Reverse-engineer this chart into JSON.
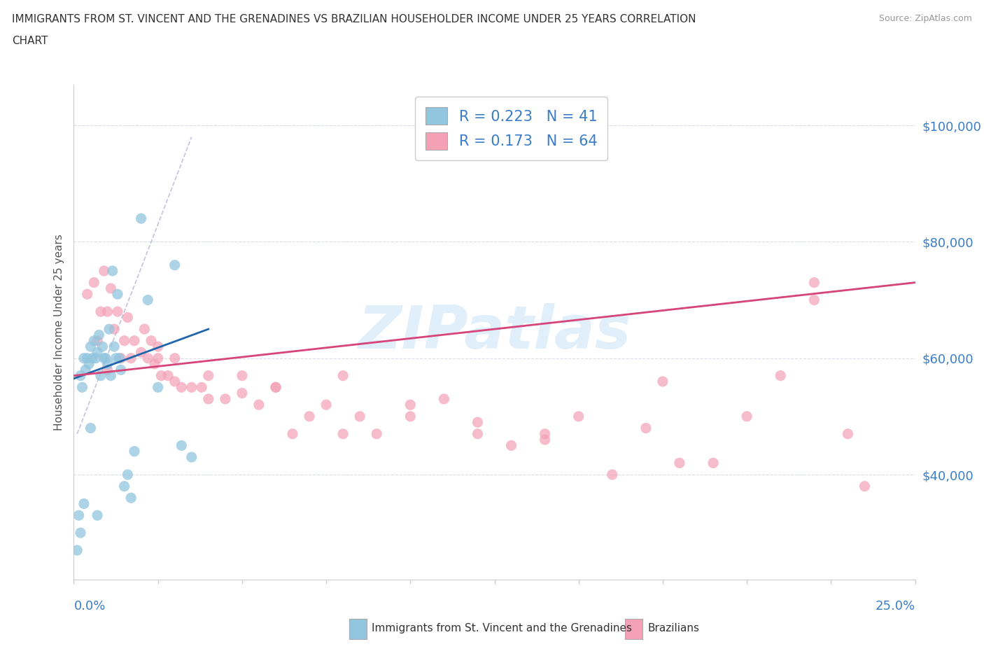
{
  "title_line1": "IMMIGRANTS FROM ST. VINCENT AND THE GRENADINES VS BRAZILIAN HOUSEHOLDER INCOME UNDER 25 YEARS CORRELATION",
  "title_line2": "CHART",
  "source_text": "Source: ZipAtlas.com",
  "ylabel": "Householder Income Under 25 years",
  "xmin": 0.0,
  "xmax": 25.0,
  "ymin": 22000,
  "ymax": 107000,
  "right_yticks": [
    40000,
    60000,
    80000,
    100000
  ],
  "right_yticklabels": [
    "$40,000",
    "$60,000",
    "$80,000",
    "$100,000"
  ],
  "legend_R1": "0.223",
  "legend_N1": "41",
  "legend_R2": "0.173",
  "legend_N2": "64",
  "blue_color": "#92c5de",
  "pink_color": "#f4a0b5",
  "trend_blue": "#2166ac",
  "trend_pink": "#d6447a",
  "watermark_color": "#cce5f5",
  "watermark": "ZIPatlas",
  "grid_color": "#d8dde8",
  "spine_color": "#cccccc",
  "blue_x": [
    0.1,
    0.15,
    0.2,
    0.25,
    0.3,
    0.35,
    0.4,
    0.45,
    0.5,
    0.55,
    0.6,
    0.65,
    0.7,
    0.75,
    0.8,
    0.85,
    0.9,
    0.95,
    1.0,
    1.05,
    1.1,
    1.15,
    1.2,
    1.25,
    1.3,
    1.35,
    1.4,
    1.5,
    1.6,
    1.7,
    1.8,
    2.0,
    2.2,
    2.5,
    3.0,
    3.2,
    3.5,
    0.2,
    0.3,
    0.5,
    0.7
  ],
  "blue_y": [
    27000,
    33000,
    57000,
    55000,
    60000,
    58000,
    60000,
    59000,
    62000,
    60000,
    63000,
    60000,
    61000,
    64000,
    57000,
    62000,
    60000,
    60000,
    59000,
    65000,
    57000,
    75000,
    62000,
    60000,
    71000,
    60000,
    58000,
    38000,
    40000,
    36000,
    44000,
    84000,
    70000,
    55000,
    76000,
    45000,
    43000,
    30000,
    35000,
    48000,
    33000
  ],
  "pink_x": [
    0.4,
    0.6,
    0.8,
    0.9,
    1.0,
    1.1,
    1.2,
    1.3,
    1.5,
    1.6,
    1.8,
    2.0,
    2.1,
    2.2,
    2.3,
    2.4,
    2.5,
    2.6,
    2.8,
    3.0,
    3.2,
    3.5,
    3.8,
    4.0,
    4.5,
    5.0,
    5.5,
    6.0,
    6.5,
    7.0,
    7.5,
    8.0,
    8.5,
    9.0,
    10.0,
    11.0,
    12.0,
    13.0,
    14.0,
    15.0,
    16.0,
    17.0,
    18.0,
    19.0,
    20.0,
    21.0,
    22.0,
    23.0,
    23.5,
    0.7,
    1.0,
    1.4,
    1.7,
    2.5,
    3.0,
    4.0,
    5.0,
    6.0,
    8.0,
    10.0,
    12.0,
    14.0,
    17.5,
    22.0
  ],
  "pink_y": [
    71000,
    73000,
    68000,
    75000,
    68000,
    72000,
    65000,
    68000,
    63000,
    67000,
    63000,
    61000,
    65000,
    60000,
    63000,
    59000,
    60000,
    57000,
    57000,
    60000,
    55000,
    55000,
    55000,
    57000,
    53000,
    57000,
    52000,
    55000,
    47000,
    50000,
    52000,
    47000,
    50000,
    47000,
    50000,
    53000,
    47000,
    45000,
    46000,
    50000,
    40000,
    48000,
    42000,
    42000,
    50000,
    57000,
    70000,
    47000,
    38000,
    63000,
    58000,
    60000,
    60000,
    62000,
    56000,
    53000,
    54000,
    55000,
    57000,
    52000,
    49000,
    47000,
    56000,
    73000
  ],
  "blue_trend_x": [
    0.0,
    4.0
  ],
  "blue_trend_y": [
    56500,
    65000
  ],
  "pink_trend_x": [
    0.0,
    25.0
  ],
  "pink_trend_y": [
    57000,
    73000
  ],
  "ref_line_x": [
    0.1,
    3.5
  ],
  "ref_line_y": [
    47000,
    98000
  ]
}
